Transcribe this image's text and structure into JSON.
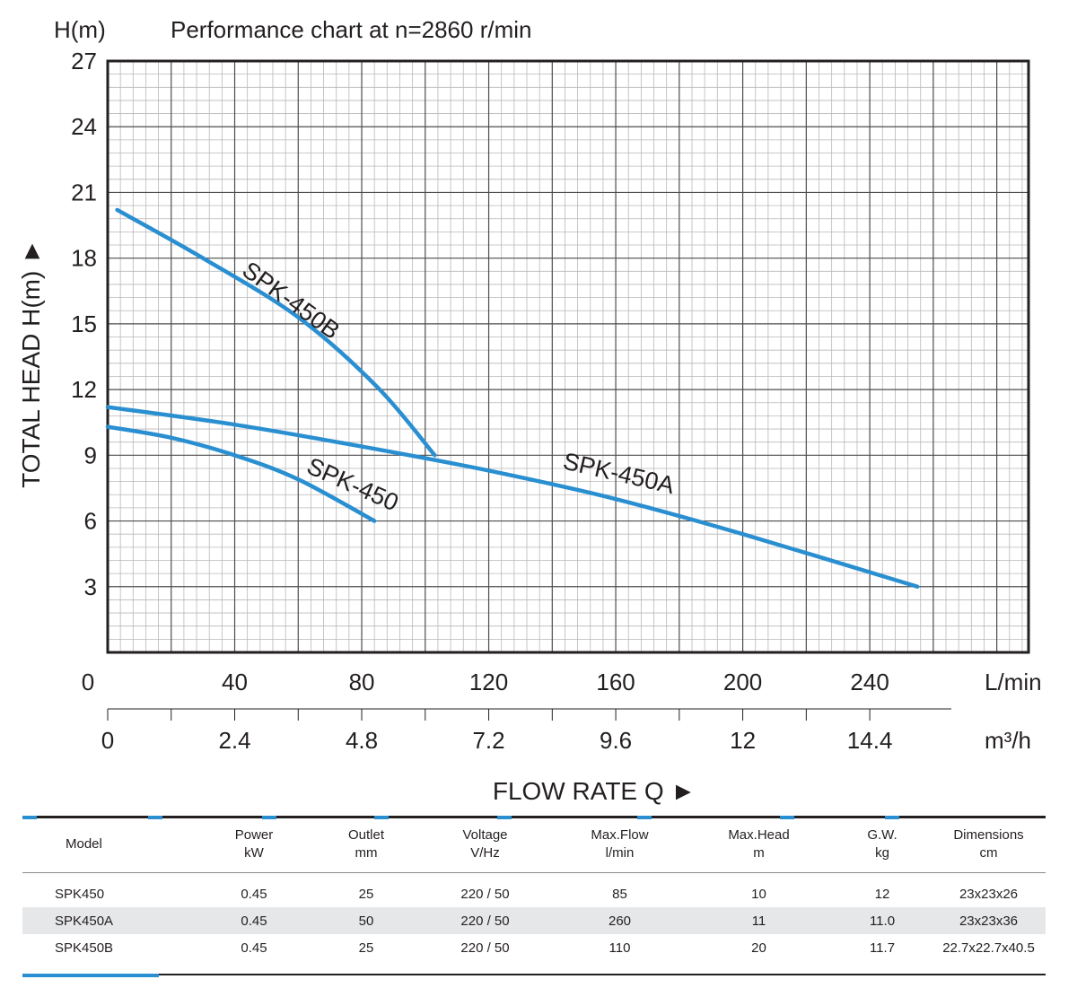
{
  "chart_data": {
    "type": "line",
    "title": "Performance chart at n=2860 r/min",
    "y_unit": "H(m)",
    "ylabel": "TOTAL HEAD H(m) ►",
    "xlabel": "FLOW RATE Q ►",
    "x_unit_primary": "L/min",
    "x_unit_secondary": "m³/h",
    "xlim": [
      0,
      290
    ],
    "ylim": [
      0,
      27
    ],
    "x_ticks_primary": [
      "0",
      "40",
      "80",
      "120",
      "160",
      "200",
      "240"
    ],
    "x_ticks_secondary": [
      "0",
      "2.4",
      "4.8",
      "7.2",
      "9.6",
      "12",
      "14.4"
    ],
    "y_ticks": [
      "3",
      "6",
      "9",
      "12",
      "15",
      "18",
      "21",
      "24",
      "27"
    ],
    "grid": true,
    "series": [
      {
        "name": "SPK-450B",
        "color": "#2a8fd1",
        "x": [
          3,
          30,
          60,
          85,
          103
        ],
        "y": [
          20.2,
          18.0,
          15.3,
          12.1,
          9.0
        ]
      },
      {
        "name": "SPK-450A",
        "color": "#2a8fd1",
        "x": [
          0,
          40,
          80,
          120,
          160,
          200,
          255
        ],
        "y": [
          11.2,
          10.4,
          9.4,
          8.3,
          7.0,
          5.4,
          3.0
        ]
      },
      {
        "name": "SPK-450",
        "color": "#2a8fd1",
        "x": [
          0,
          20,
          40,
          60,
          84
        ],
        "y": [
          10.3,
          9.8,
          9.0,
          7.9,
          6.0
        ]
      }
    ]
  },
  "table": {
    "headers": [
      {
        "line1": "Model",
        "line2": ""
      },
      {
        "line1": "Power",
        "line2": "kW"
      },
      {
        "line1": "Outlet",
        "line2": "mm"
      },
      {
        "line1": "Voltage",
        "line2": "V/Hz"
      },
      {
        "line1": "Max.Flow",
        "line2": "l/min"
      },
      {
        "line1": "Max.Head",
        "line2": "m"
      },
      {
        "line1": "G.W.",
        "line2": "kg"
      },
      {
        "line1": "Dimensions",
        "line2": "cm"
      }
    ],
    "rows": [
      [
        "SPK450",
        "0.45",
        "25",
        "220 / 50",
        "85",
        "10",
        "12",
        "23x23x26"
      ],
      [
        "SPK450A",
        "0.45",
        "50",
        "220 / 50",
        "260",
        "11",
        "11.0",
        "23x23x36"
      ],
      [
        "SPK450B",
        "0.45",
        "25",
        "220 / 50",
        "110",
        "20",
        "11.7",
        "22.7x22.7x40.5"
      ]
    ],
    "accent_color": "#2a8fd1"
  }
}
